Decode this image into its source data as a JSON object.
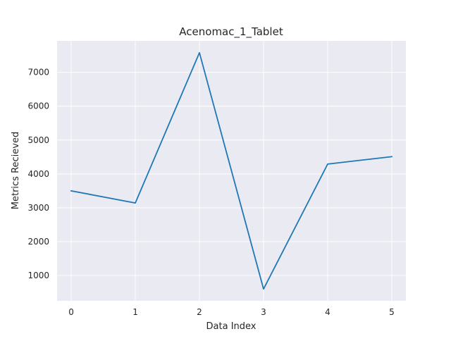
{
  "chart_data": {
    "type": "line",
    "title": "Acenomac_1_Tablet",
    "xlabel": "Data Index",
    "ylabel": "Metrics Recieved",
    "x": [
      0,
      1,
      2,
      3,
      4,
      5
    ],
    "series": [
      {
        "values": [
          3500,
          3140,
          7580,
          600,
          4290,
          4510
        ]
      }
    ],
    "xticks": [
      "0",
      "1",
      "2",
      "3",
      "4",
      "5"
    ],
    "yticks": [
      "1000",
      "2000",
      "3000",
      "4000",
      "5000",
      "6000",
      "7000"
    ],
    "xlim": [
      -0.22,
      5.22
    ],
    "ylim": [
      250,
      7930
    ],
    "grid": true,
    "colors": {
      "line": "#1f77b4",
      "plot_background": "#eaeaf2",
      "grid": "#ffffff"
    }
  }
}
